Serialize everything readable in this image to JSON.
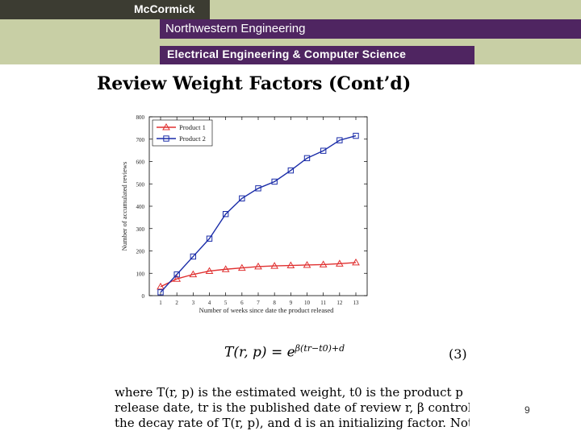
{
  "header": {
    "brand": "McCormick",
    "school": "Northwestern Engineering",
    "department": "Electrical Engineering & Computer Science"
  },
  "slide": {
    "title": "Review Weight Factors (Cont’d)",
    "page_number": "9"
  },
  "chart_data": {
    "type": "line",
    "x": [
      1,
      2,
      3,
      4,
      5,
      6,
      7,
      8,
      9,
      10,
      11,
      12,
      13
    ],
    "series": [
      {
        "name": "Product 1",
        "values": [
          40,
          75,
          95,
          110,
          118,
          124,
          130,
          133,
          135,
          137,
          139,
          143,
          148
        ],
        "color": "#e03030",
        "marker": "triangle"
      },
      {
        "name": "Product 2",
        "values": [
          15,
          95,
          175,
          255,
          365,
          435,
          480,
          510,
          560,
          615,
          648,
          695,
          715
        ],
        "color": "#1a2ca8",
        "marker": "square"
      }
    ],
    "xlabel": "Number of weeks since date the product released",
    "ylabel": "Number of accumulated reviews",
    "xlim": [
      1,
      13
    ],
    "ylim": [
      0,
      800
    ],
    "yticks": [
      0,
      100,
      200,
      300,
      400,
      500,
      600,
      700,
      800
    ],
    "xticks": [
      1,
      2,
      3,
      4,
      5,
      6,
      7,
      8,
      9,
      10,
      11,
      12,
      13
    ],
    "legend_position": "top-left",
    "grid": false
  },
  "formula": {
    "lhs": "T(r, p) = e",
    "exponent": "β(tr−t0)+d",
    "eq_number": "(3)"
  },
  "description": {
    "lines": [
      "where T(r, p) is the estimated weight, t0 is the product p",
      "release date, tr is the published date of review r, β controls",
      "the decay rate of T(r, p), and d is an initializing factor. Note"
    ]
  }
}
